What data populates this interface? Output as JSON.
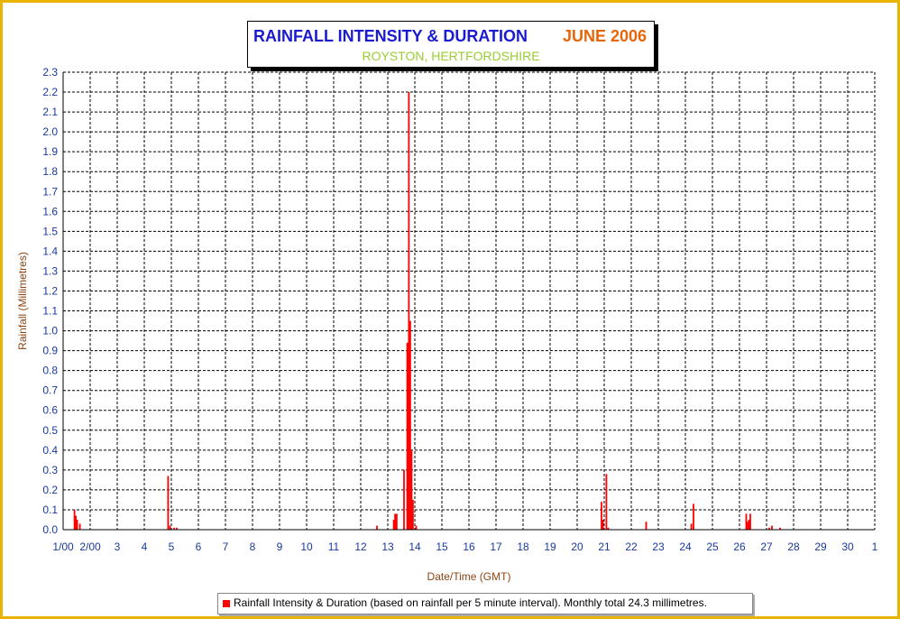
{
  "title": {
    "main": "RAINFALL INTENSITY & DURATION",
    "month": "JUNE 2006",
    "location": "ROYSTON, HERTFORDSHIRE"
  },
  "legend": {
    "text": "Rainfall Intensity & Duration (based on rainfall per 5 minute interval). Monthly total 24.3 millimetres."
  },
  "colors": {
    "frame": "#e8b400",
    "series": "#ff0000",
    "title": "#1a1ad0",
    "month": "#e8660a",
    "subtitle": "#9acd32",
    "axis_title": "#8b4513",
    "tick_labels": "#1a3a9a"
  },
  "chart_data": {
    "type": "bar",
    "xlabel": "Date/Time (GMT)",
    "ylabel": "Rainfall (Millimetres)",
    "ylim": [
      0,
      2.3
    ],
    "xlim": [
      1,
      31
    ],
    "grid": true,
    "legend_position": "bottom",
    "y_ticks": [
      "0.0",
      "0.1",
      "0.2",
      "0.3",
      "0.4",
      "0.5",
      "0.6",
      "0.7",
      "0.8",
      "0.9",
      "1.0",
      "1.1",
      "1.2",
      "1.3",
      "1.4",
      "1.5",
      "1.6",
      "1.7",
      "1.8",
      "1.9",
      "2.0",
      "2.1",
      "2.2",
      "2.3"
    ],
    "x_ticks": [
      {
        "x": 1,
        "label": "1/00"
      },
      {
        "x": 2,
        "label": "2/00"
      },
      {
        "x": 3,
        "label": "3"
      },
      {
        "x": 4,
        "label": "4"
      },
      {
        "x": 5,
        "label": "5"
      },
      {
        "x": 6,
        "label": "6"
      },
      {
        "x": 7,
        "label": "7"
      },
      {
        "x": 8,
        "label": "8"
      },
      {
        "x": 9,
        "label": "9"
      },
      {
        "x": 10,
        "label": "10"
      },
      {
        "x": 11,
        "label": "11"
      },
      {
        "x": 12,
        "label": "12"
      },
      {
        "x": 13,
        "label": "13"
      },
      {
        "x": 14,
        "label": "14"
      },
      {
        "x": 15,
        "label": "15"
      },
      {
        "x": 16,
        "label": "16"
      },
      {
        "x": 17,
        "label": "17"
      },
      {
        "x": 18,
        "label": "18"
      },
      {
        "x": 19,
        "label": "19"
      },
      {
        "x": 20,
        "label": "20"
      },
      {
        "x": 21,
        "label": "21"
      },
      {
        "x": 22,
        "label": "22"
      },
      {
        "x": 23,
        "label": "23"
      },
      {
        "x": 24,
        "label": "24"
      },
      {
        "x": 25,
        "label": "25"
      },
      {
        "x": 26,
        "label": "26"
      },
      {
        "x": 27,
        "label": "27"
      },
      {
        "x": 28,
        "label": "28"
      },
      {
        "x": 29,
        "label": "29"
      },
      {
        "x": 30,
        "label": "30"
      },
      {
        "x": 31,
        "label": "1"
      }
    ],
    "series": [
      {
        "color": "#ff0000",
        "points": [
          {
            "x": 1.42,
            "y": 0.1
          },
          {
            "x": 1.47,
            "y": 0.07
          },
          {
            "x": 1.52,
            "y": 0.05
          },
          {
            "x": 1.62,
            "y": 0.03
          },
          {
            "x": 4.88,
            "y": 0.27
          },
          {
            "x": 4.95,
            "y": 0.02
          },
          {
            "x": 5.1,
            "y": 0.01
          },
          {
            "x": 5.2,
            "y": 0.01
          },
          {
            "x": 12.6,
            "y": 0.02
          },
          {
            "x": 13.22,
            "y": 0.05
          },
          {
            "x": 13.27,
            "y": 0.08
          },
          {
            "x": 13.33,
            "y": 0.08
          },
          {
            "x": 13.6,
            "y": 0.3
          },
          {
            "x": 13.72,
            "y": 0.94
          },
          {
            "x": 13.78,
            "y": 2.2
          },
          {
            "x": 13.83,
            "y": 1.05
          },
          {
            "x": 13.88,
            "y": 0.4
          },
          {
            "x": 13.93,
            "y": 0.15
          },
          {
            "x": 14.05,
            "y": 0.02
          },
          {
            "x": 20.9,
            "y": 0.14
          },
          {
            "x": 20.95,
            "y": 0.05
          },
          {
            "x": 21.08,
            "y": 0.28
          },
          {
            "x": 21.15,
            "y": 0.01
          },
          {
            "x": 22.55,
            "y": 0.04
          },
          {
            "x": 24.22,
            "y": 0.03
          },
          {
            "x": 24.3,
            "y": 0.13
          },
          {
            "x": 26.25,
            "y": 0.08
          },
          {
            "x": 26.3,
            "y": 0.04
          },
          {
            "x": 26.35,
            "y": 0.05
          },
          {
            "x": 26.4,
            "y": 0.08
          },
          {
            "x": 27.1,
            "y": 0.01
          },
          {
            "x": 27.2,
            "y": 0.02
          },
          {
            "x": 27.5,
            "y": 0.01
          }
        ]
      }
    ]
  }
}
